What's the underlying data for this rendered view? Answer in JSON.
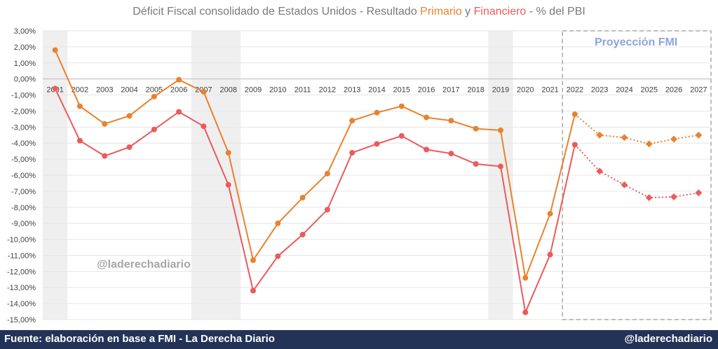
{
  "title": {
    "prefix": "Déficit Fiscal consolidado de Estados Unidos - Resultado ",
    "primario": "Primario",
    "mid": " y ",
    "financiero": "Financiero",
    "suffix": " - % del PBI"
  },
  "watermark": "@laderechadiario",
  "projection_label": "Proyección FMI",
  "footer": {
    "source": "Fuente: elaboración en base a FMI - La Derecha Diario",
    "handle": "@laderechadiario"
  },
  "colors": {
    "primario": "#e8822e",
    "financiero": "#ec5a5a",
    "recession_shade": "#efefef",
    "projection_box": "#a8a8a8",
    "footer_bg": "#233358"
  },
  "chart_data": {
    "type": "line",
    "categories": [
      "2001",
      "2002",
      "2003",
      "2004",
      "2005",
      "2006",
      "2007",
      "2008",
      "2009",
      "2010",
      "2011",
      "2012",
      "2013",
      "2014",
      "2015",
      "2016",
      "2017",
      "2018",
      "2019",
      "2020",
      "2021",
      "2022",
      "2023",
      "2024",
      "2025",
      "2026",
      "2027"
    ],
    "y_tick_labels": [
      "3,00%",
      "2,00%",
      "1,00%",
      "0,00%",
      "-1,00%",
      "-2,00%",
      "-3,00%",
      "-4,00%",
      "-5,00%",
      "-6,00%",
      "-7,00%",
      "-8,00%",
      "-9,00%",
      "-10,00%",
      "-11,00%",
      "-12,00%",
      "-13,00%",
      "-14,00%",
      "-15,00%"
    ],
    "ylim": [
      -15,
      3
    ],
    "grid": true,
    "shaded_periods": [
      [
        "2001",
        "2002"
      ],
      [
        "2007",
        "2009"
      ],
      [
        "2019",
        "2020"
      ]
    ],
    "projection_from": "2022",
    "series": [
      {
        "name": "Primario",
        "values": [
          1.8,
          -1.7,
          -2.8,
          -2.3,
          -1.1,
          -0.05,
          -0.8,
          -4.6,
          -11.3,
          -9.0,
          -7.4,
          -5.9,
          -2.6,
          -2.1,
          -1.7,
          -2.4,
          -2.6,
          -3.1,
          -3.2,
          -12.4,
          -8.4,
          -2.2,
          -3.5,
          -3.65,
          -4.05,
          -3.75,
          -3.5
        ]
      },
      {
        "name": "Financiero",
        "values": [
          -0.6,
          -3.85,
          -4.8,
          -4.25,
          -3.15,
          -2.05,
          -2.95,
          -6.6,
          -13.2,
          -11.05,
          -9.7,
          -8.15,
          -4.6,
          -4.05,
          -3.55,
          -4.4,
          -4.65,
          -5.3,
          -5.45,
          -14.55,
          -10.95,
          -4.1,
          -5.75,
          -6.6,
          -7.4,
          -7.35,
          -7.1
        ]
      }
    ]
  }
}
